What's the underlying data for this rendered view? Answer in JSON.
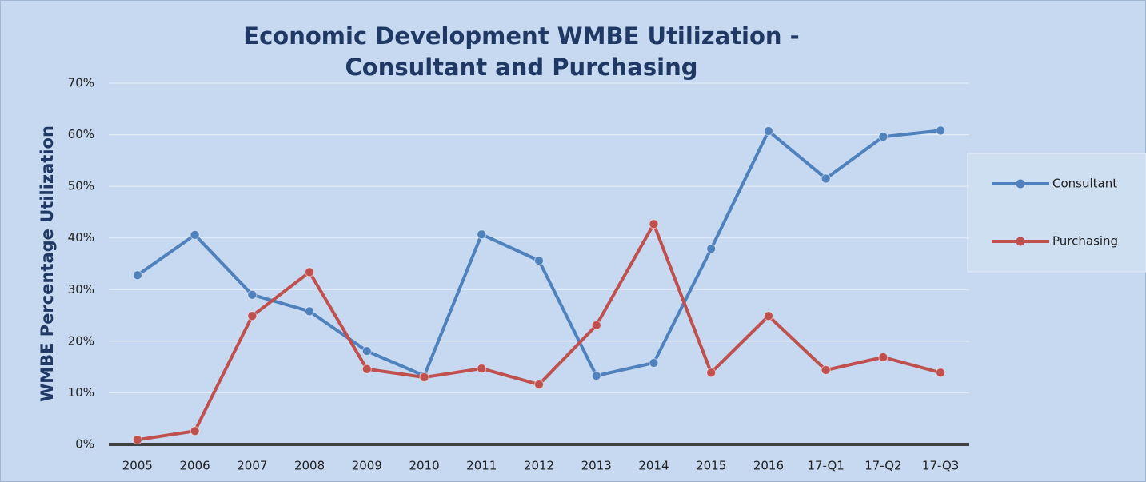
{
  "chart_data": {
    "type": "line",
    "title": [
      "Economic Development WMBE Utilization -",
      "Consultant and Purchasing"
    ],
    "y_label": "WMBE Percentage Utilization",
    "categories": [
      "2005",
      "2006",
      "2007",
      "2008",
      "2009",
      "2010",
      "2011",
      "2012",
      "2013",
      "2014",
      "2015",
      "2016",
      "17-Q1",
      "17-Q2",
      "17-Q3"
    ],
    "series": [
      {
        "name": "Consultant",
        "color": "#4f81bd",
        "values": [
          32.8,
          40.6,
          29,
          25.8,
          18.1,
          13.3,
          40.7,
          35.6,
          13.3,
          15.8,
          37.9,
          60.7,
          51.5,
          59.6,
          60.8
        ]
      },
      {
        "name": "Purchasing",
        "color": "#c0504d",
        "values": [
          0.9,
          2.6,
          24.9,
          33.4,
          14.6,
          13,
          14.7,
          11.6,
          23.1,
          42.7,
          13.9,
          24.9,
          14.4,
          16.9,
          13.9
        ]
      }
    ],
    "ylim": [
      0,
      70
    ],
    "yticks": [
      {
        "value": 0,
        "label": "0%"
      },
      {
        "value": 10,
        "label": "10%"
      },
      {
        "value": 20,
        "label": "20%"
      },
      {
        "value": 30,
        "label": "30%"
      },
      {
        "value": 40,
        "label": "40%"
      },
      {
        "value": 50,
        "label": "50%"
      },
      {
        "value": 60,
        "label": "60%"
      },
      {
        "value": 70,
        "label": "70%"
      }
    ],
    "grid": true,
    "legend": "right"
  }
}
